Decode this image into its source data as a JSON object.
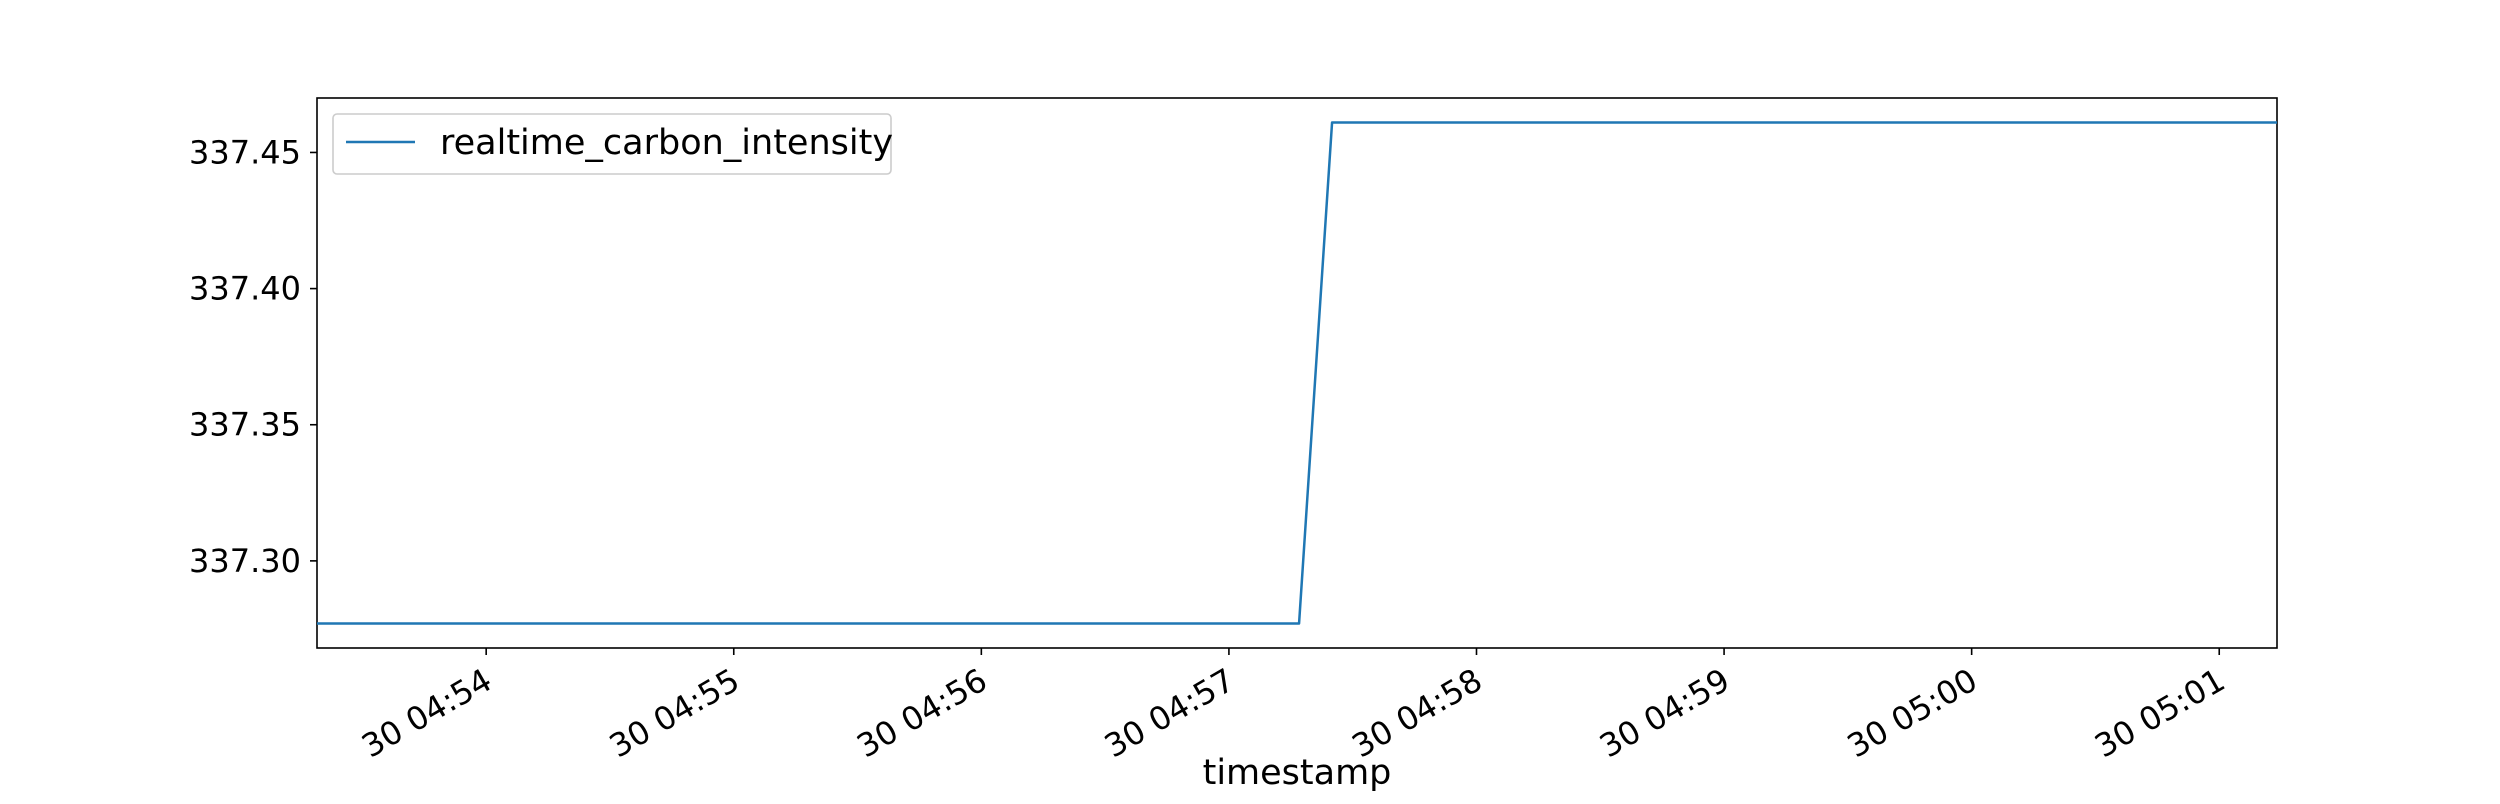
{
  "chart_data": {
    "type": "line",
    "title": "",
    "xlabel": "timestamp",
    "ylabel": "",
    "x_type": "time",
    "xlim": [
      "2000-01-30T04:53:19",
      "2000-01-30T05:01:14"
    ],
    "ylim": [
      337.268,
      337.47
    ],
    "x_ticks": [
      {
        "value": "2000-01-30T04:54:00",
        "label": "30 04:54"
      },
      {
        "value": "2000-01-30T04:55:00",
        "label": "30 04:55"
      },
      {
        "value": "2000-01-30T04:56:00",
        "label": "30 04:56"
      },
      {
        "value": "2000-01-30T04:57:00",
        "label": "30 04:57"
      },
      {
        "value": "2000-01-30T04:58:00",
        "label": "30 04:58"
      },
      {
        "value": "2000-01-30T04:59:00",
        "label": "30 04:59"
      },
      {
        "value": "2000-01-30T05:00:00",
        "label": "30 05:00"
      },
      {
        "value": "2000-01-30T05:01:00",
        "label": "30 05:01"
      }
    ],
    "y_ticks": [
      {
        "value": 337.3,
        "label": "337.30"
      },
      {
        "value": 337.35,
        "label": "337.35"
      },
      {
        "value": 337.4,
        "label": "337.40"
      },
      {
        "value": 337.45,
        "label": "337.45"
      }
    ],
    "series": [
      {
        "name": "realtime_carbon_intensity",
        "color": "#1f77b4",
        "x": [
          "2000-01-30T04:53:19",
          "2000-01-30T04:57:17",
          "2000-01-30T04:57:25",
          "2000-01-30T05:01:14"
        ],
        "y": [
          337.277,
          337.277,
          337.461,
          337.461
        ]
      }
    ],
    "grid": false,
    "legend": {
      "position": "top-left"
    }
  }
}
